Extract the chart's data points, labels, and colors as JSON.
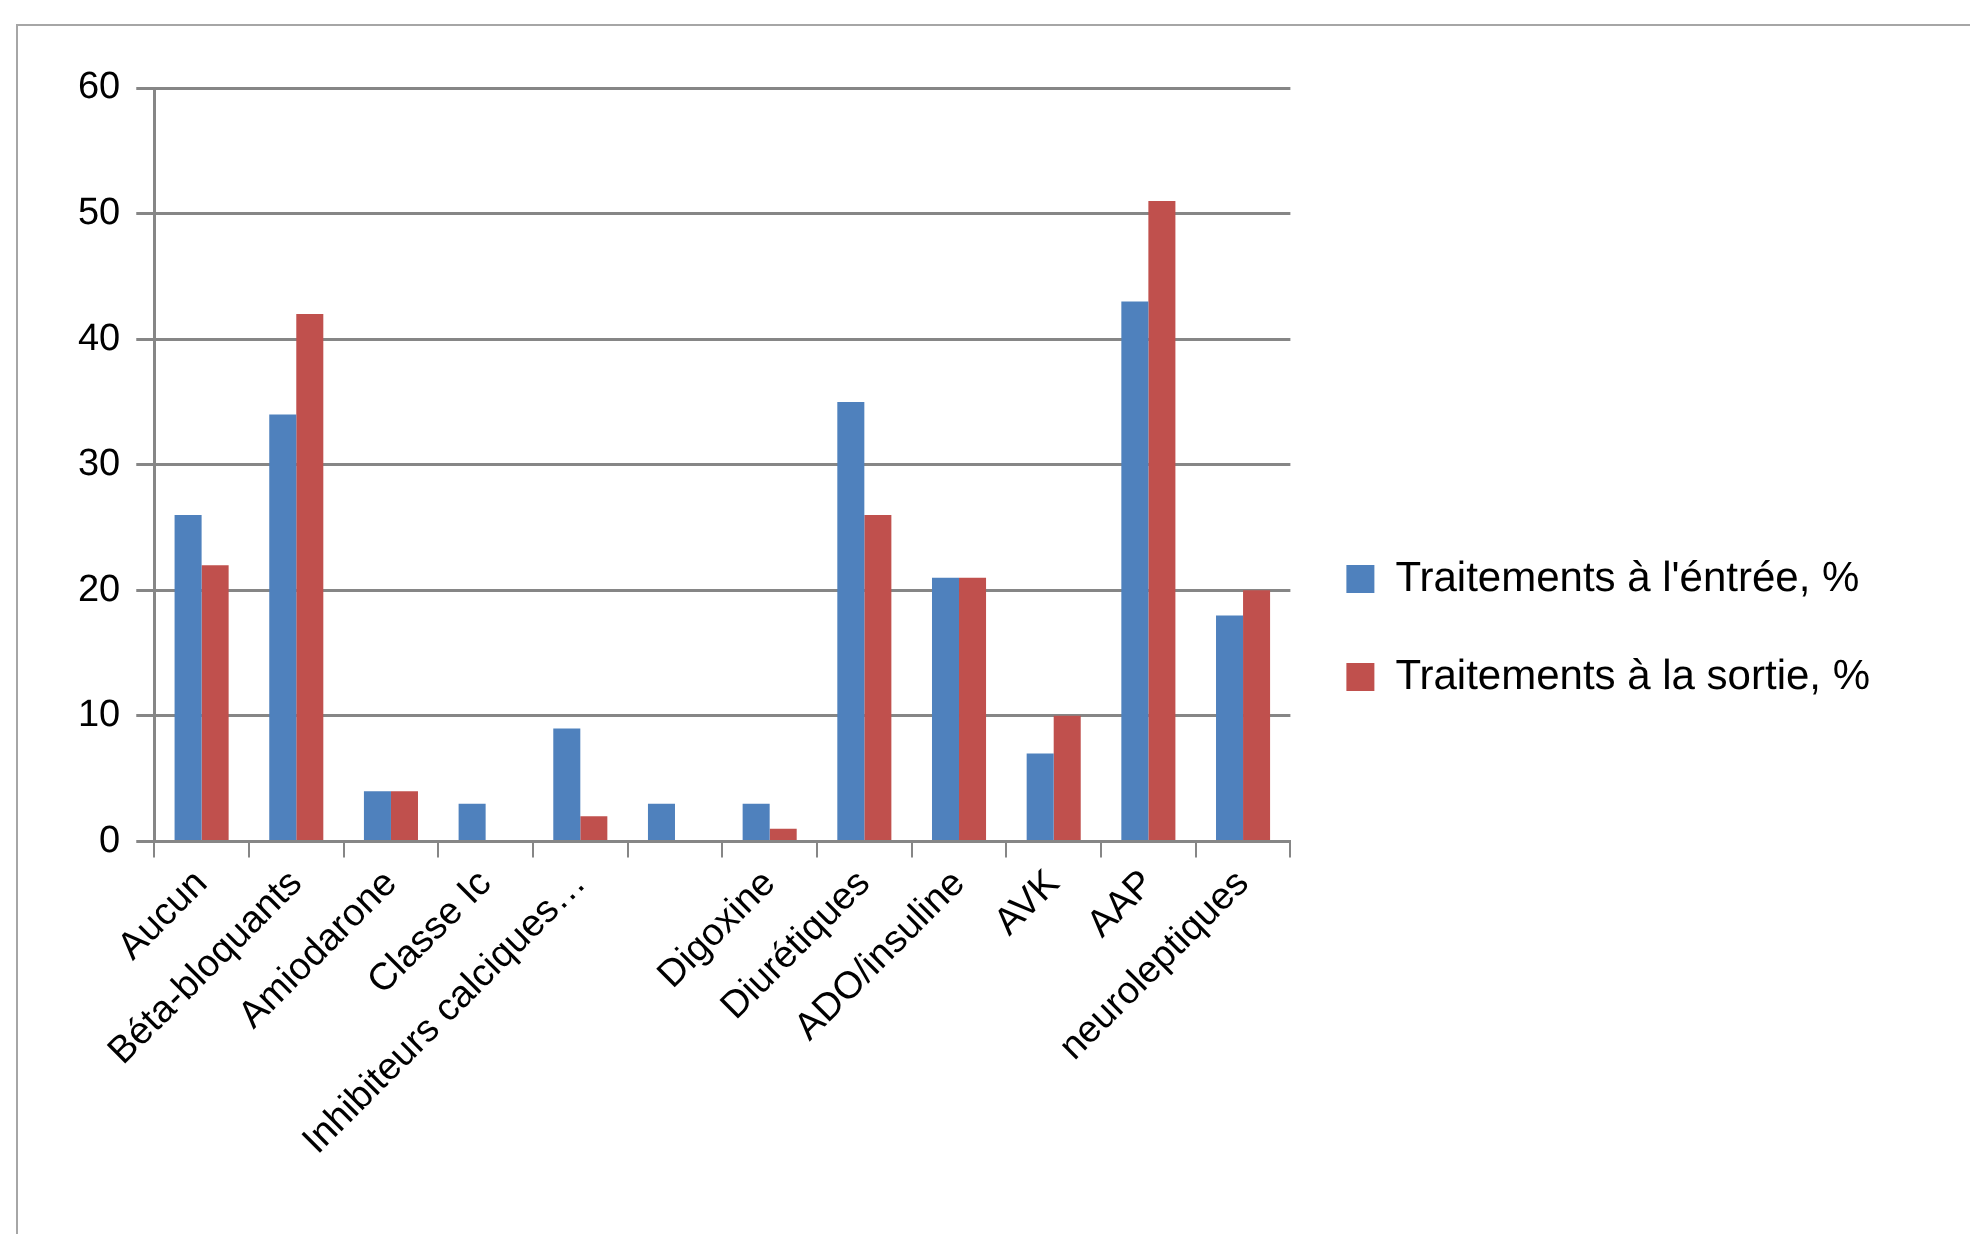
{
  "chart_data": {
    "type": "bar",
    "categories": [
      "Aucun",
      "Béta-bloquants",
      "Amiodarone",
      "Classe Ic",
      "Inhibiteurs calciques…",
      null,
      "Digoxine",
      "Diurétiques",
      "ADO/insuline",
      "AVK",
      "AAP",
      "neuroleptiques"
    ],
    "series": [
      {
        "name": "Traitements à l'éntrée, %",
        "color": "#4f81bd",
        "values": [
          26,
          34,
          4,
          3,
          9,
          3,
          3,
          35,
          21,
          7,
          43,
          18
        ]
      },
      {
        "name": "Traitements à la sortie, %",
        "color": "#c0504d",
        "values": [
          22,
          42,
          4,
          0,
          2,
          0,
          1,
          26,
          21,
          10,
          51,
          20
        ]
      }
    ],
    "ylim": [
      0,
      60
    ],
    "yticks": [
      0,
      10,
      20,
      30,
      40,
      50,
      60
    ],
    "grid": "y",
    "legend": "right"
  }
}
